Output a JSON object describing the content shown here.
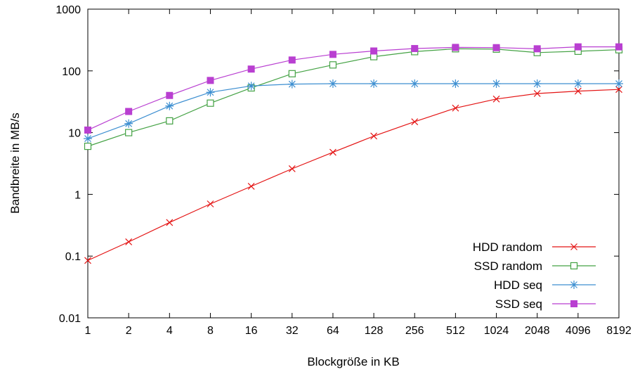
{
  "chart_data": {
    "type": "line",
    "x_scale": "log2",
    "y_scale": "log10",
    "x": [
      1,
      2,
      4,
      8,
      16,
      32,
      64,
      128,
      256,
      512,
      1024,
      2048,
      4096,
      8192
    ],
    "y_ticks": [
      0.01,
      0.1,
      1,
      10,
      100,
      1000
    ],
    "xlabel": "Blockgröße in KB",
    "ylabel": "Bandbreite in MB/s",
    "xlim": [
      1,
      8192
    ],
    "ylim": [
      0.01,
      1000
    ],
    "grid": false,
    "legend_position": "bottom-right-inside",
    "series": [
      {
        "name": "HDD random",
        "color": "#e41414",
        "marker": "x",
        "values": [
          0.085,
          0.17,
          0.35,
          0.7,
          1.35,
          2.6,
          4.8,
          8.8,
          15,
          25,
          35,
          43,
          47,
          50
        ]
      },
      {
        "name": "SSD random",
        "color": "#44a244",
        "marker": "open-square",
        "values": [
          6,
          10,
          15.5,
          30,
          53,
          90,
          125,
          170,
          205,
          228,
          225,
          198,
          208,
          220
        ]
      },
      {
        "name": "HDD seq",
        "color": "#3d8fd1",
        "marker": "asterisk",
        "values": [
          8,
          14,
          27,
          45,
          57,
          61,
          62,
          62,
          62,
          62,
          62,
          62,
          62,
          62
        ]
      },
      {
        "name": "SSD seq",
        "color": "#b93fd1",
        "marker": "filled-square",
        "values": [
          11,
          22,
          40,
          70,
          107,
          150,
          185,
          210,
          230,
          240,
          238,
          228,
          245,
          245
        ]
      }
    ]
  }
}
